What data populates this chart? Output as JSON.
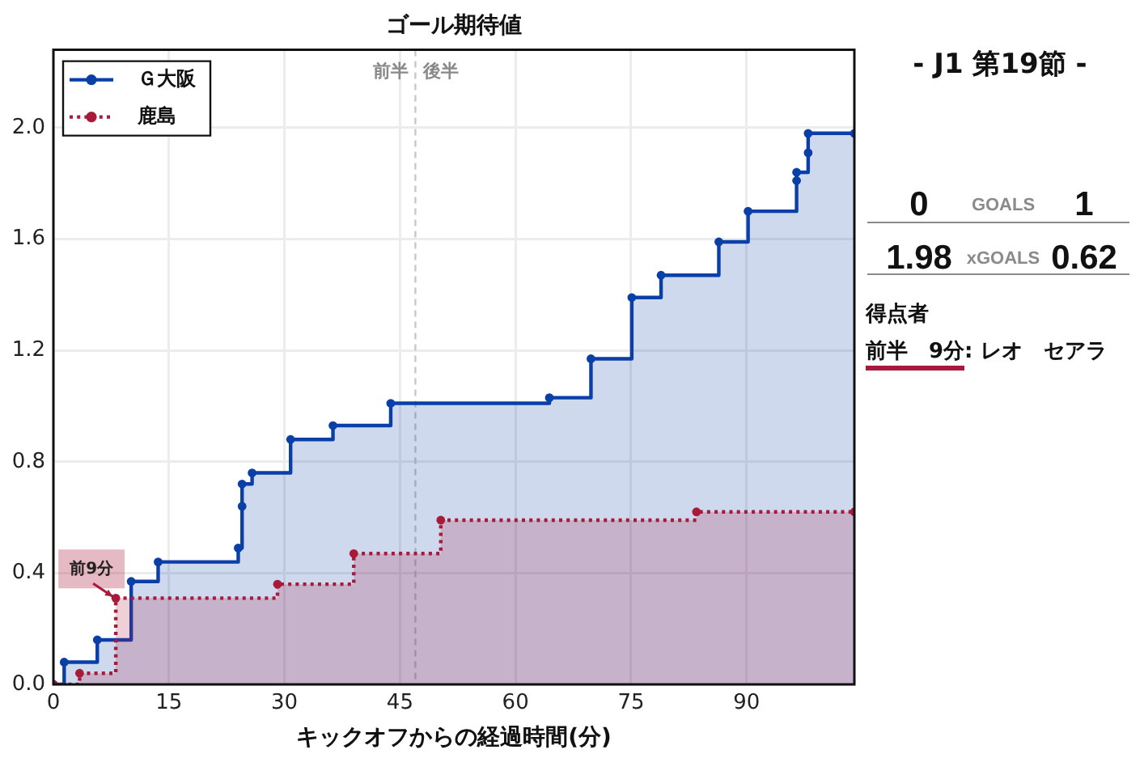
{
  "chart_data": [
    {
      "type": "step",
      "title": "ゴール期待値",
      "xlabel": "キックオフからの経過時間(分)",
      "series": [
        {
          "name": "Ｇ大阪",
          "color": "#0a3fa8",
          "line_style": "solid",
          "x": [
            0,
            1.4,
            5.7,
            10.1,
            13.6,
            24.0,
            24.5,
            24.5,
            25.8,
            30.8,
            36.3,
            43.8,
            64.4,
            69.8,
            75.1,
            78.9,
            86.4,
            90.2,
            96.5,
            96.5,
            98.0,
            98.0,
            104
          ],
          "values": [
            0,
            0.08,
            0.16,
            0.37,
            0.44,
            0.49,
            0.64,
            0.72,
            0.76,
            0.88,
            0.93,
            1.01,
            1.03,
            1.17,
            1.39,
            1.47,
            1.59,
            1.7,
            1.81,
            1.84,
            1.91,
            1.98,
            1.98
          ]
        },
        {
          "name": "鹿島",
          "color": "#a8193a",
          "line_style": "dotted",
          "x": [
            0,
            3.4,
            8.1,
            29.1,
            39.0,
            50.3,
            83.5,
            104
          ],
          "values": [
            0,
            0.04,
            0.31,
            0.36,
            0.47,
            0.59,
            0.62,
            0.62
          ]
        }
      ],
      "xlim": [
        0,
        104
      ],
      "ylim": [
        0,
        2.28
      ],
      "xticks": [
        0,
        15,
        30,
        45,
        60,
        75,
        90
      ],
      "yticks": [
        {
          "value": 0,
          "label": "0.0"
        },
        0.4,
        0.8,
        1.2,
        1.6,
        {
          "value": 2,
          "label": "2.0"
        }
      ],
      "grid": true,
      "legend": "top left",
      "marker": "circle",
      "ref_lines": [
        {
          "axis": "x",
          "value": 47,
          "color": "#c8c8c8",
          "line_style": "dashed"
        }
      ],
      "annotations": [
        "前半",
        "後半",
        {
          "text": "前9分",
          "x": 8.1,
          "y": 0.31
        }
      ]
    },
    {
      "type": "other",
      "title": "- J1 第19節 -",
      "annotations": [
        "0",
        "GOALS",
        "1",
        "1.98",
        "xGOALS",
        "0.62",
        "得点者",
        "前半　9分",
        ": レオ　セアラ"
      ]
    }
  ]
}
